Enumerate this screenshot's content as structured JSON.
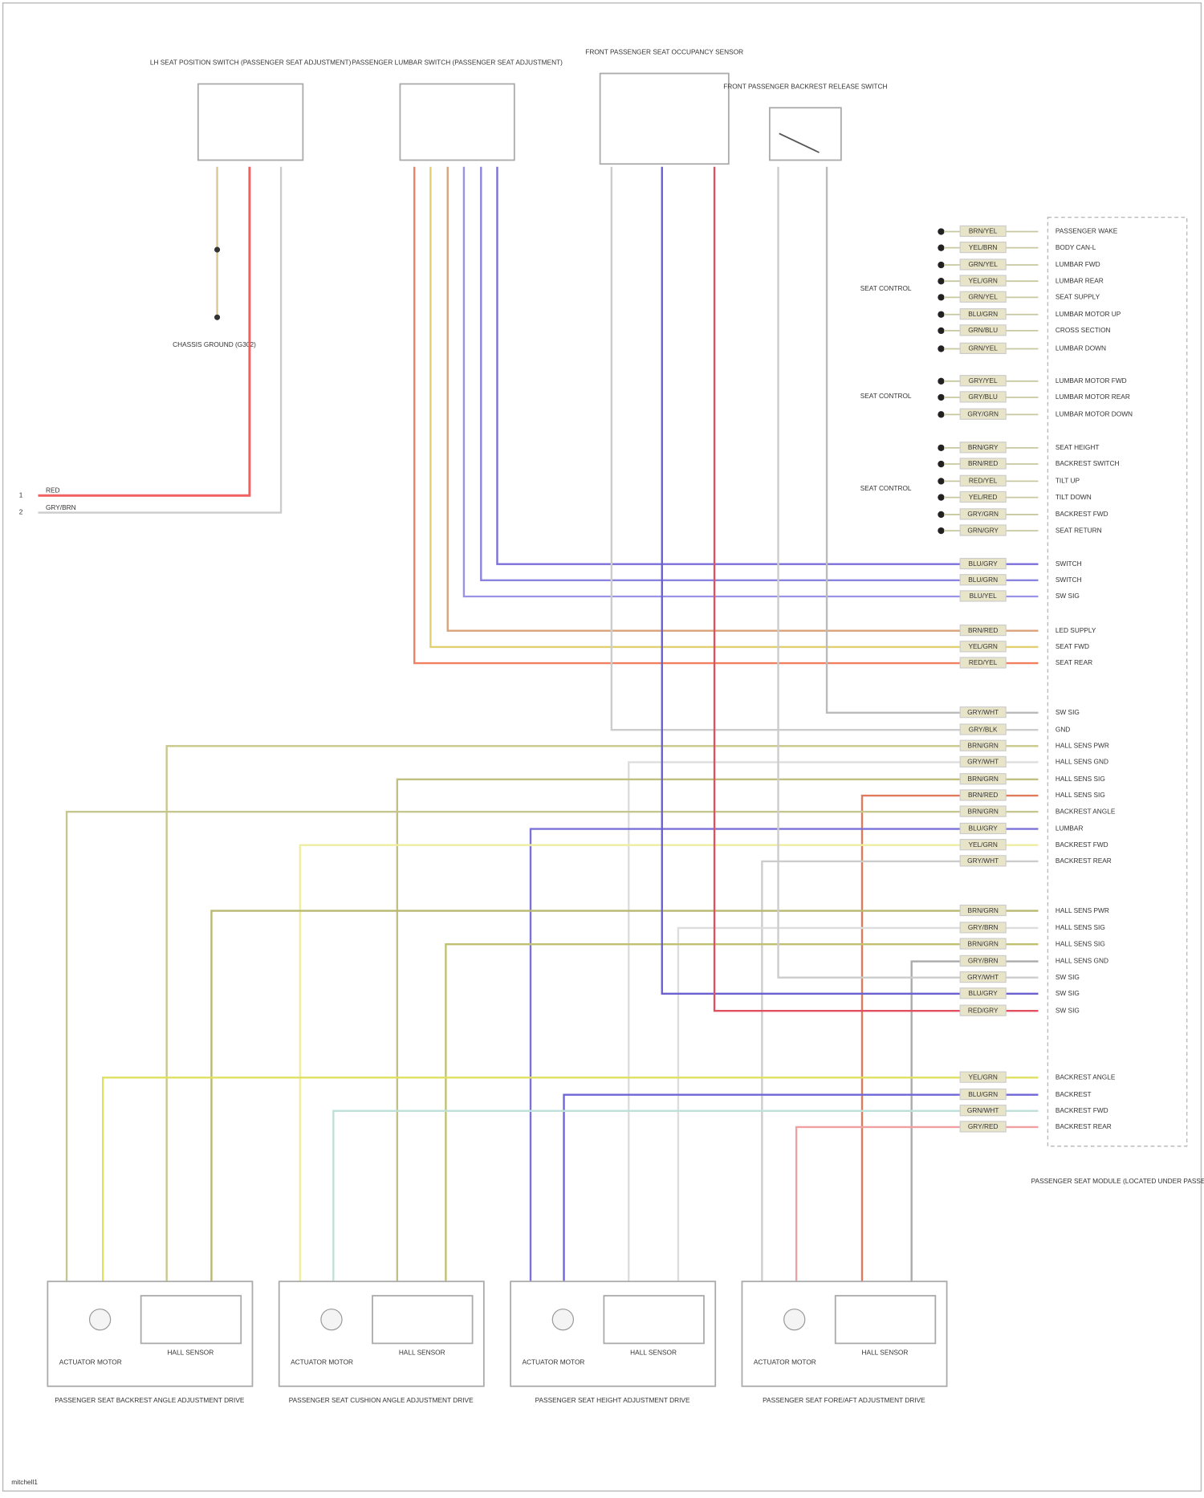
{
  "top_components": [
    {
      "label": "LH SEAT POSITION SWITCH (PASSENGER SEAT ADJUSTMENT)"
    },
    {
      "label": "PASSENGER LUMBAR SWITCH (PASSENGER SEAT ADJUSTMENT)"
    },
    {
      "label": "FRONT PASSENGER SEAT OCCUPANCY SENSOR"
    },
    {
      "label": "FRONT PASSENGER BACKREST RELEASE SWITCH"
    }
  ],
  "splice_label": "CHASSIS GROUND (G302)",
  "harness": [
    {
      "wire": "RED",
      "name": "1"
    },
    {
      "wire": "GRY/BRN",
      "name": "2"
    }
  ],
  "connector_groups": [
    "SEAT CONTROL",
    "SEAT CONTROL",
    "SEAT CONTROL"
  ],
  "pins": [
    {
      "wire": "BRN/YEL",
      "name": "PASSENGER WAKE"
    },
    {
      "wire": "YEL/BRN",
      "name": "BODY CAN-L"
    },
    {
      "wire": "GRN/YEL",
      "name": "LUMBAR FWD"
    },
    {
      "wire": "YEL/GRN",
      "name": "LUMBAR REAR"
    },
    {
      "wire": "GRN/YEL",
      "name": "SEAT SUPPLY"
    },
    {
      "wire": "BLU/GRN",
      "name": "LUMBAR MOTOR UP"
    },
    {
      "wire": "GRN/BLU",
      "name": "CROSS SECTION"
    },
    {
      "wire": "GRN/YEL",
      "name": "LUMBAR DOWN"
    },
    {
      "wire": "GRY/YEL",
      "name": "LUMBAR MOTOR FWD"
    },
    {
      "wire": "GRY/BLU",
      "name": "LUMBAR MOTOR REAR"
    },
    {
      "wire": "GRY/GRN",
      "name": "LUMBAR MOTOR DOWN"
    },
    {
      "wire": "BRN/GRY",
      "name": "SEAT HEIGHT"
    },
    {
      "wire": "BRN/RED",
      "name": "BACKREST SWITCH"
    },
    {
      "wire": "RED/YEL",
      "name": "TILT UP"
    },
    {
      "wire": "YEL/RED",
      "name": "TILT DOWN"
    },
    {
      "wire": "GRY/GRN",
      "name": "BACKREST FWD"
    },
    {
      "wire": "GRN/GRY",
      "name": "SEAT RETURN"
    },
    {
      "wire": "BLU/GRY",
      "name": "SWITCH"
    },
    {
      "wire": "BLU/GRN",
      "name": "SWITCH"
    },
    {
      "wire": "BLU/YEL",
      "name": "SW SIG"
    },
    {
      "wire": "BRN/RED",
      "name": "LED SUPPLY"
    },
    {
      "wire": "YEL/GRN",
      "name": "SEAT FWD"
    },
    {
      "wire": "RED/YEL",
      "name": "SEAT REAR"
    },
    {
      "wire": "GRY/WHT",
      "name": "SW SIG"
    },
    {
      "wire": "GRY/BLK",
      "name": "GND"
    },
    {
      "wire": "BRN/GRN",
      "name": "HALL SENS PWR"
    },
    {
      "wire": "GRY/WHT",
      "name": "HALL SENS GND"
    },
    {
      "wire": "BRN/GRN",
      "name": "HALL SENS SIG"
    },
    {
      "wire": "BRN/RED",
      "name": "HALL SENS SIG"
    },
    {
      "wire": "BRN/GRN",
      "name": "BACKREST ANGLE"
    },
    {
      "wire": "BLU/GRY",
      "name": "LUMBAR"
    },
    {
      "wire": "YEL/GRN",
      "name": "BACKREST FWD"
    },
    {
      "wire": "GRY/WHT",
      "name": "BACKREST REAR"
    },
    {
      "wire": "BRN/GRN",
      "name": "HALL SENS PWR"
    },
    {
      "wire": "GRY/BRN",
      "name": "HALL SENS SIG"
    },
    {
      "wire": "BRN/GRN",
      "name": "HALL SENS SIG"
    },
    {
      "wire": "GRY/BRN",
      "name": "HALL SENS GND"
    },
    {
      "wire": "GRY/WHT",
      "name": "SW SIG"
    },
    {
      "wire": "BLU/GRY",
      "name": "SW SIG"
    },
    {
      "wire": "RED/GRY",
      "name": "SW SIG"
    },
    {
      "wire": "YEL/GRN",
      "name": "BACKREST ANGLE"
    },
    {
      "wire": "BLU/GRN",
      "name": "BACKREST"
    },
    {
      "wire": "GRN/WHT",
      "name": "BACKREST FWD"
    },
    {
      "wire": "GRY/RED",
      "name": "BACKREST REAR"
    }
  ],
  "module_label": "PASSENGER SEAT MODULE (LOCATED UNDER PASSENGER SEAT)",
  "assemblies": [
    {
      "motor": "ACTUATOR MOTOR",
      "sensor": "HALL SENSOR",
      "caption": "PASSENGER SEAT BACKREST ANGLE ADJUSTMENT DRIVE"
    },
    {
      "motor": "ACTUATOR MOTOR",
      "sensor": "HALL SENSOR",
      "caption": "PASSENGER SEAT CUSHION ANGLE ADJUSTMENT DRIVE"
    },
    {
      "motor": "ACTUATOR MOTOR",
      "sensor": "HALL SENSOR",
      "caption": "PASSENGER SEAT HEIGHT ADJUSTMENT DRIVE"
    },
    {
      "motor": "ACTUATOR MOTOR",
      "sensor": "HALL SENSOR",
      "caption": "PASSENGER SEAT FORE/AFT ADJUSTMENT DRIVE"
    }
  ],
  "footer": "mitchell1"
}
